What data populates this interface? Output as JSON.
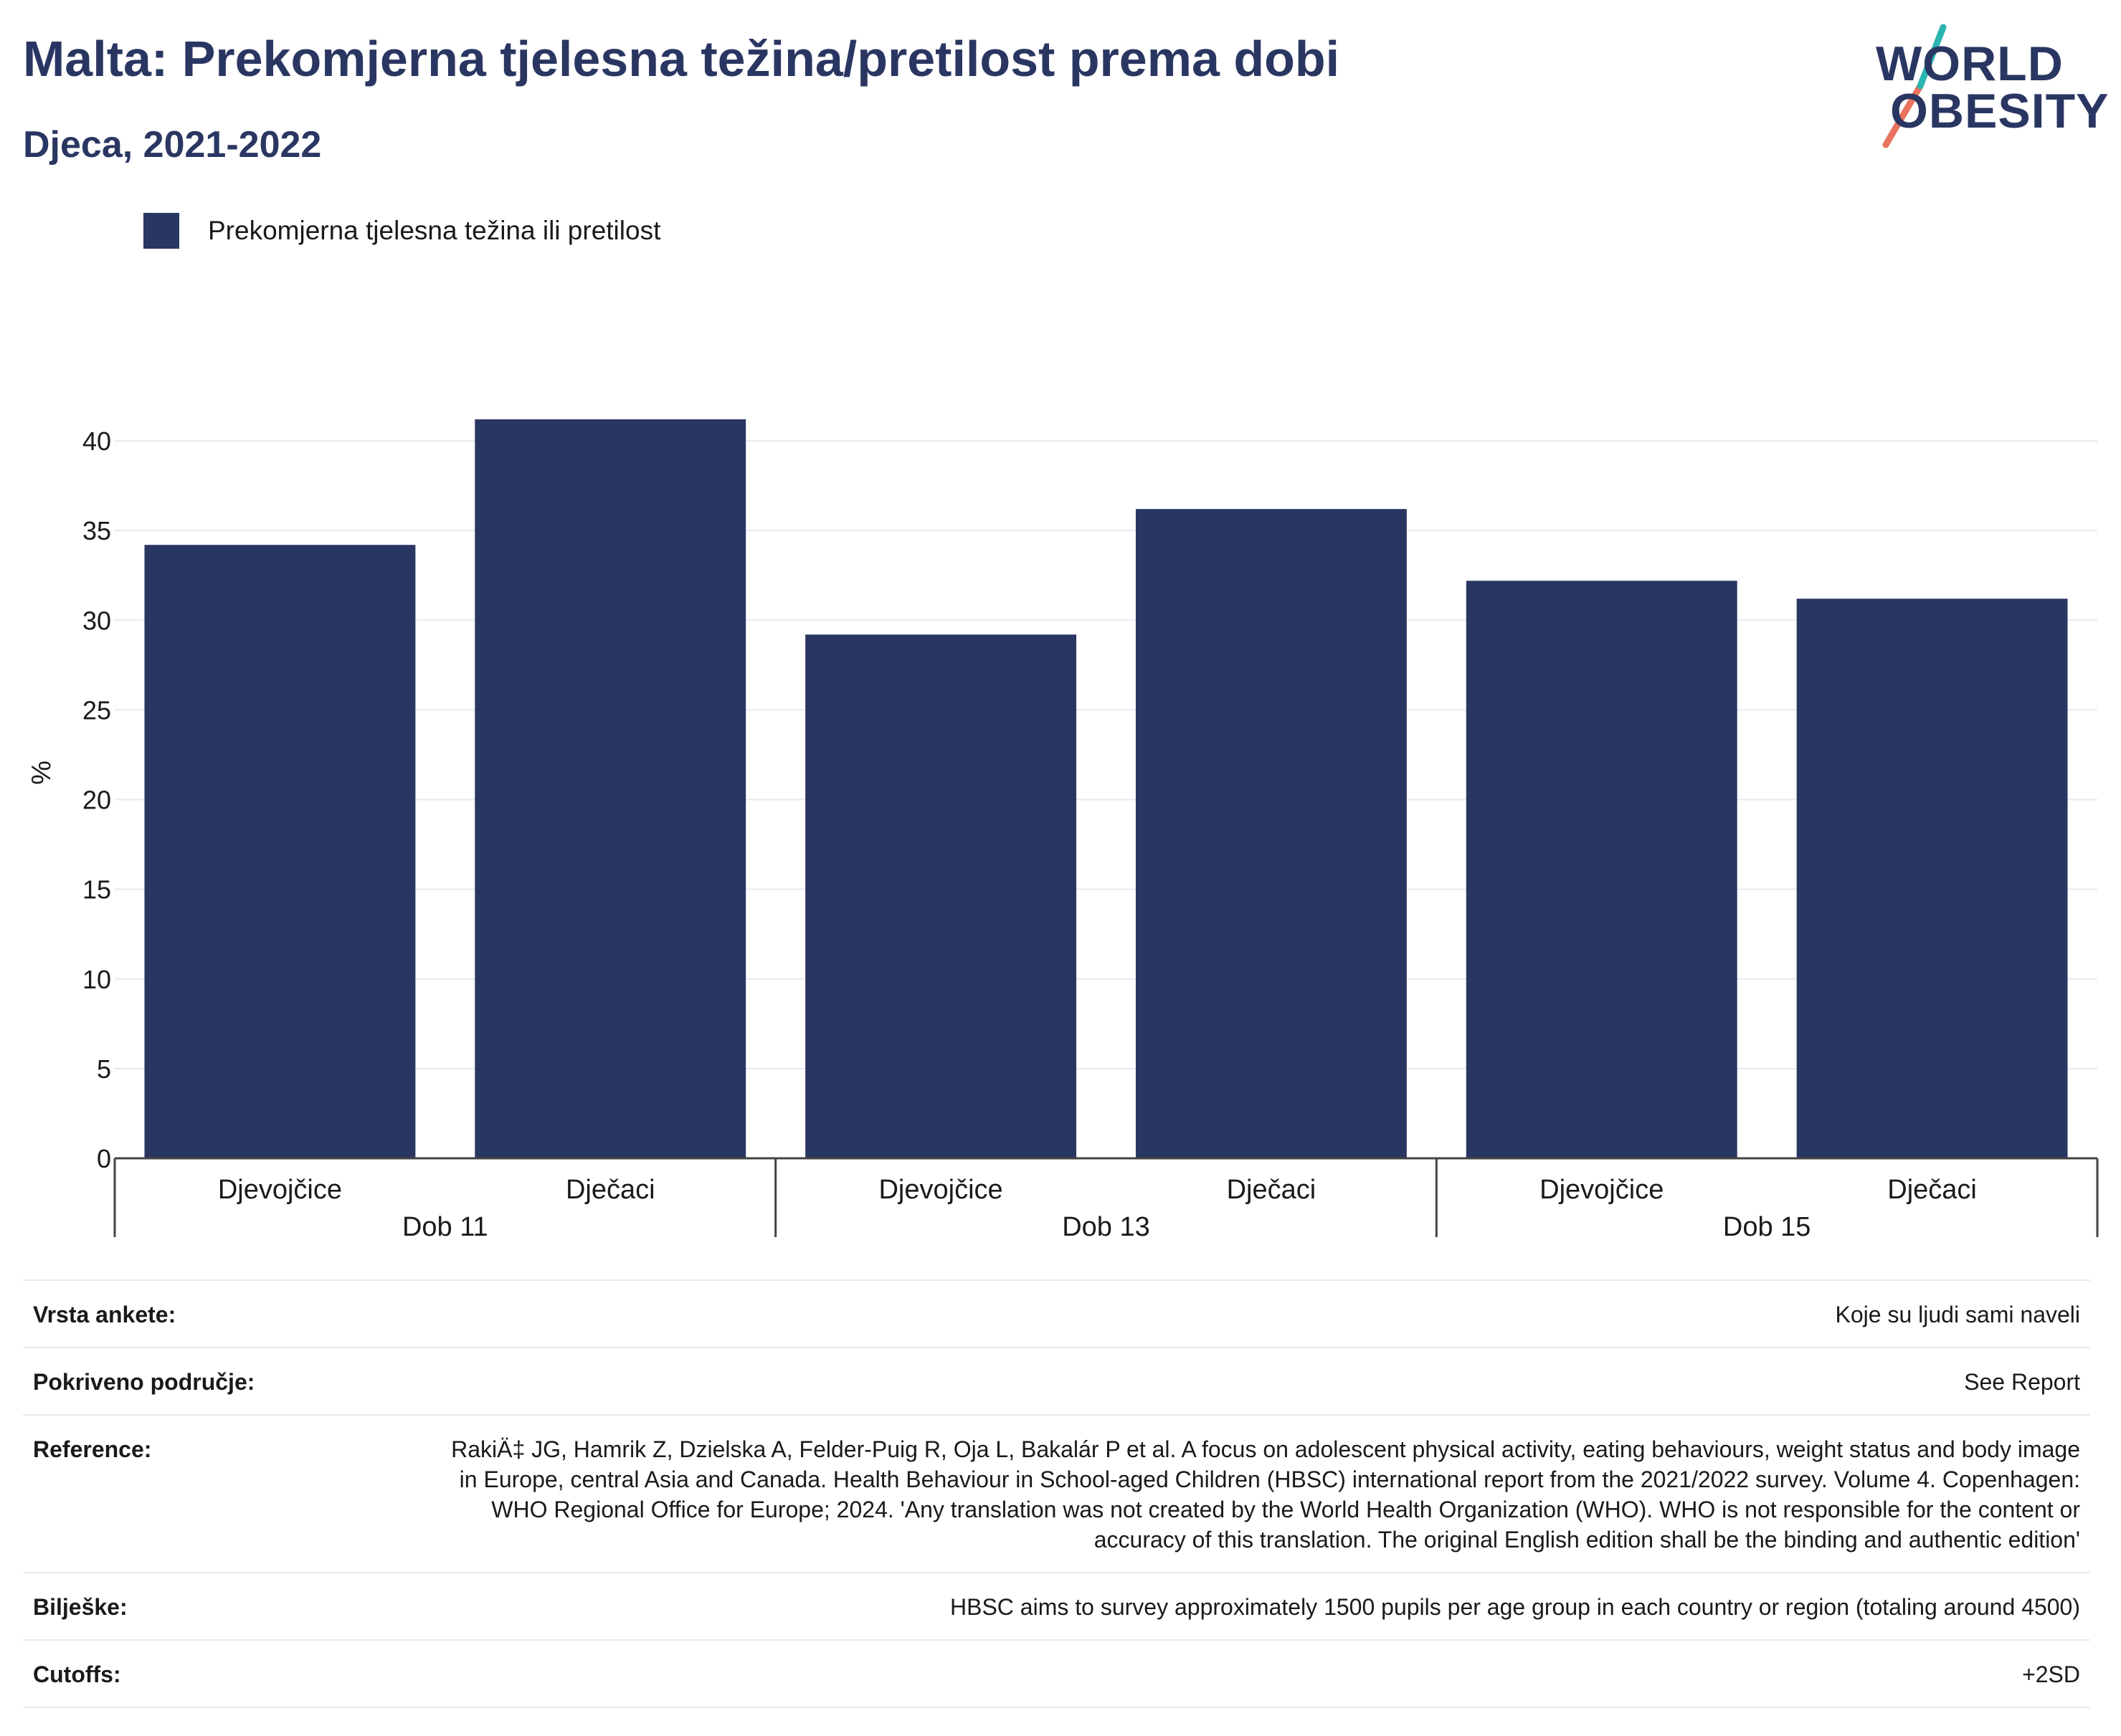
{
  "header": {
    "title": "Malta: Prekomjerna tjelesna težina/pretilost prema dobi",
    "subtitle": "Djeca, 2021-2022"
  },
  "logo": {
    "line1": "WORLD",
    "line2": "OBESITY"
  },
  "legend": {
    "label": "Prekomjerna tjelesna težina ili pretilost",
    "color": "#2a3662"
  },
  "chart_data": {
    "type": "bar",
    "title": "Malta: Prekomjerna tjelesna težina/pretilost prema dobi",
    "subtitle": "Djeca, 2021-2022",
    "ylabel": "%",
    "ylim": [
      0,
      43
    ],
    "yticks": [
      0,
      5,
      10,
      15,
      20,
      25,
      30,
      35,
      40
    ],
    "grid": true,
    "legend_position": "top-left",
    "groups": [
      "Dob 11",
      "Dob 13",
      "Dob 15"
    ],
    "categories": [
      "Djevojčice",
      "Dječaci",
      "Djevojčice",
      "Dječaci",
      "Djevojčice",
      "Dječaci"
    ],
    "series": [
      {
        "name": "Prekomjerna tjelesna težina ili pretilost",
        "color": "#2a3662",
        "values": [
          34.2,
          41.2,
          29.2,
          36.2,
          32.2,
          31.2
        ]
      }
    ]
  },
  "metadata": [
    {
      "label": "Vrsta ankete:",
      "value": "Koje su ljudi sami naveli"
    },
    {
      "label": "Pokriveno područje:",
      "value": "See Report"
    },
    {
      "label": "Reference:",
      "value": "RakiÄ‡ JG, Hamrik Z, Dzielska A, Felder-Puig R, Oja L, Bakalár P et al. A focus on adolescent physical activity, eating behaviours, weight status and body image in Europe, central Asia and Canada. Health Behaviour in School-aged Children (HBSC) international report from the 2021/2022 survey. Volume 4. Copenhagen: WHO Regional Office for Europe; 2024. 'Any translation was not created by the World Health Organization (WHO). WHO is not responsible for the content or accuracy of this translation. The original English edition shall be the binding and authentic edition'"
    },
    {
      "label": "Bilješke:",
      "value": "HBSC aims to survey approximately 1500 pupils per age group in each country or region (totaling around 4500)"
    },
    {
      "label": "Cutoffs:",
      "value": "+2SD"
    }
  ]
}
